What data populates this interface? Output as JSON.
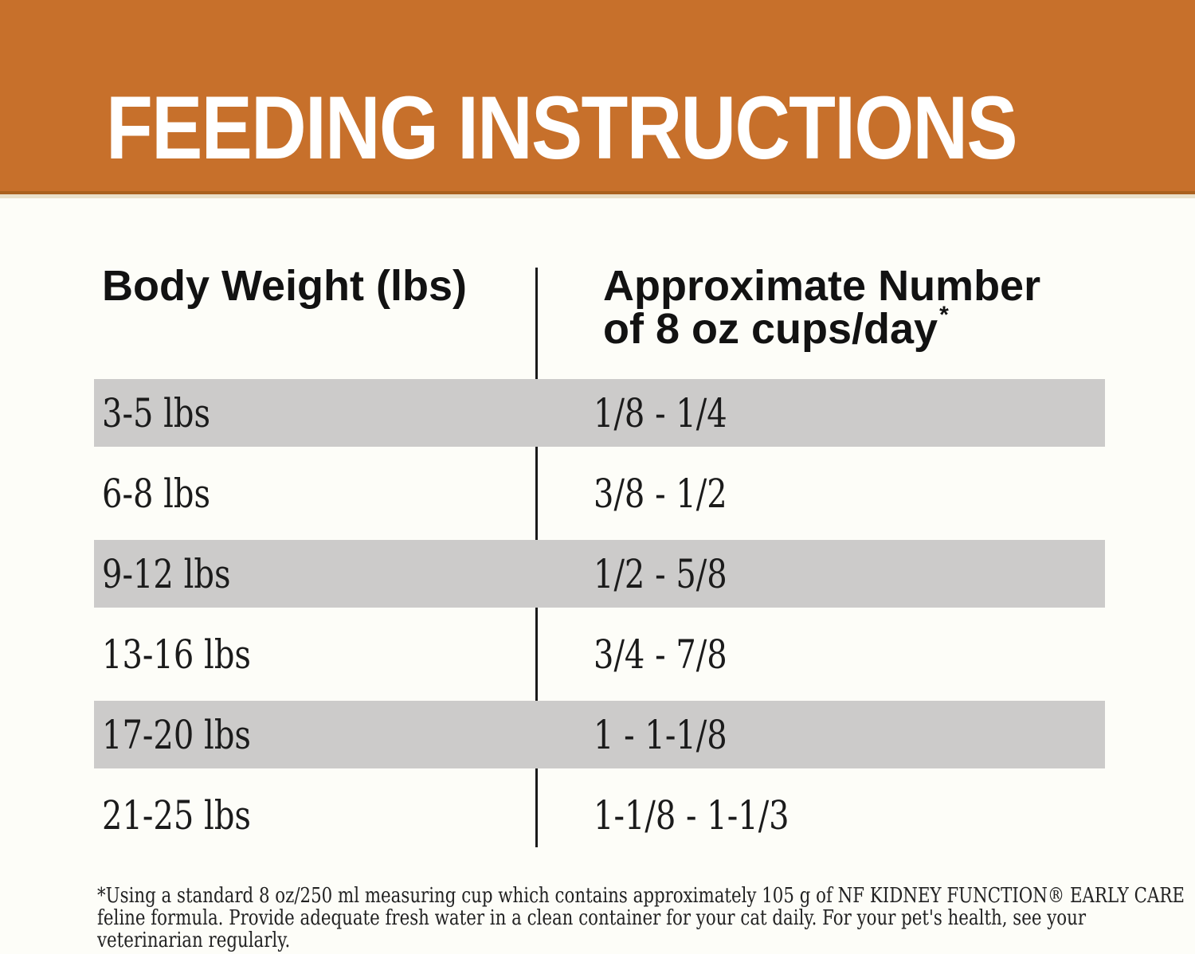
{
  "header": {
    "title": "FEEDING INSTRUCTIONS"
  },
  "table": {
    "col1_header": "Body Weight (lbs)",
    "col2_header_line1": "Approximate Number",
    "col2_header_line2": "of 8 oz cups/day",
    "col2_header_asterisk": "*",
    "rows": [
      {
        "weight": "3-5 lbs",
        "cups": "1/8 - 1/4"
      },
      {
        "weight": "6-8 lbs",
        "cups": "3/8 - 1/2"
      },
      {
        "weight": "9-12 lbs",
        "cups": "1/2 - 5/8"
      },
      {
        "weight": "13-16 lbs",
        "cups": "3/4 - 7/8"
      },
      {
        "weight": "17-20 lbs",
        "cups": "1 - 1-1/8"
      },
      {
        "weight": "21-25 lbs",
        "cups": "1-1/8 - 1-1/3"
      }
    ]
  },
  "footnote": {
    "lines": [
      "*Using a standard 8 oz/250 ml measuring cup which contains approximately 105 g of NF KIDNEY FUNCTION® EARLY CARE",
      "feline formula. Provide adequate fresh water in a clean container for your cat daily. For your pet's health, see your",
      "veterinarian regularly."
    ]
  },
  "colors": {
    "banner_orange": "#c7702b",
    "banner_edge": "#aa611f",
    "row_gray": "#cccbca",
    "text_black": "#1b1b1b",
    "background": "#fdfdf8"
  }
}
